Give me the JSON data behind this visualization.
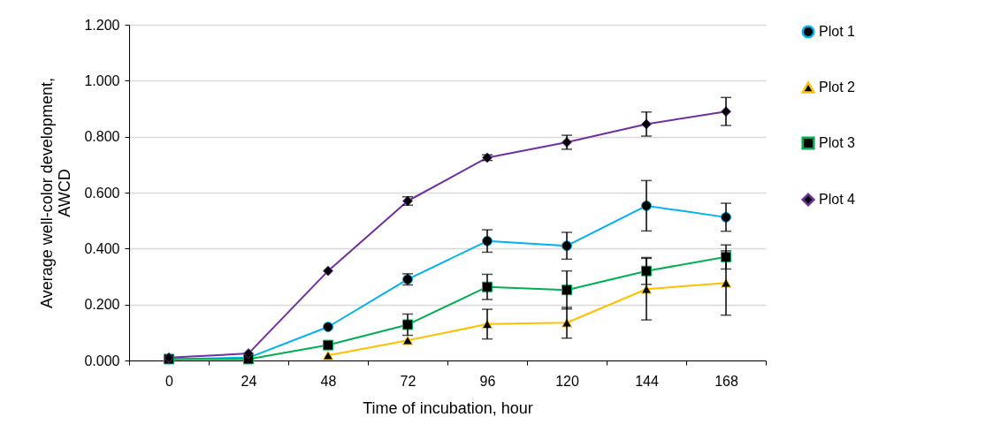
{
  "chart_data": {
    "type": "line",
    "xlabel": "Time of incubation, hour",
    "ylabel": "Average well-color development, AWCD",
    "categories": [
      "0",
      "24",
      "48",
      "72",
      "96",
      "120",
      "144",
      "168"
    ],
    "ylim": [
      0,
      1.2
    ],
    "yticks": [
      {
        "value": 0,
        "label": "0.000"
      },
      {
        "value": 0.2,
        "label": "0.200"
      },
      {
        "value": 0.4,
        "label": "0.400"
      },
      {
        "value": 0.6,
        "label": "0.600"
      },
      {
        "value": 0.8,
        "label": "0.800"
      },
      {
        "value": 1,
        "label": "1.000"
      },
      {
        "value": 1.2,
        "label": "1.200"
      }
    ],
    "grid": "y",
    "legend": "right",
    "series": [
      {
        "name": "Plot 1",
        "color": "#00b0f0",
        "marker": "circle",
        "values": [
          0.005,
          0.01,
          0.12,
          0.29,
          0.427,
          0.41,
          0.553,
          0.512
        ],
        "errors": [
          null,
          null,
          null,
          0.02,
          0.04,
          0.048,
          0.09,
          0.05
        ]
      },
      {
        "name": "Plot 2",
        "color": "#ffc000",
        "marker": "triangle",
        "values": [
          null,
          null,
          0.018,
          0.072,
          0.13,
          0.135,
          0.255,
          0.277
        ],
        "errors": [
          null,
          null,
          null,
          null,
          0.053,
          0.055,
          0.11,
          0.115
        ]
      },
      {
        "name": "Plot 3",
        "color": "#00b050",
        "marker": "square",
        "values": [
          0.005,
          0.005,
          0.055,
          0.128,
          0.263,
          0.252,
          0.32,
          0.37
        ],
        "errors": [
          null,
          null,
          null,
          0.038,
          0.045,
          0.068,
          0.048,
          0.043
        ]
      },
      {
        "name": "Plot 4",
        "color": "#7030a0",
        "marker": "diamond",
        "values": [
          0.01,
          0.025,
          0.32,
          0.57,
          0.725,
          0.78,
          0.845,
          0.89
        ],
        "errors": [
          null,
          null,
          null,
          0.015,
          0.01,
          0.025,
          0.043,
          0.05
        ]
      }
    ]
  }
}
